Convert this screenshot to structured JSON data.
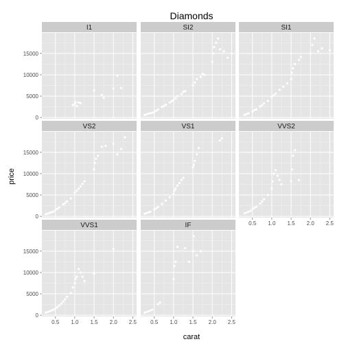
{
  "chart_data": {
    "type": "scatter",
    "title": "Diamonds",
    "xlabel": "carat",
    "ylabel": "price",
    "xlim": [
      0.15,
      2.6
    ],
    "ylim": [
      -300,
      19800
    ],
    "x_ticks": [
      0.5,
      1.0,
      1.5,
      2.0,
      2.5
    ],
    "x_tick_labels": [
      "0.5",
      "1.0",
      "1.5",
      "2.0",
      "2.5"
    ],
    "y_ticks": [
      0,
      5000,
      10000,
      15000
    ],
    "y_tick_labels": [
      "0",
      "5000",
      "10000",
      "15000"
    ],
    "grid": true,
    "point_color": "#ffffff",
    "panel_background": "#e5e5e5",
    "strip_background": "#cccccc",
    "facets": [
      {
        "label": "I1",
        "points": [
          [
            0.95,
            2900
          ],
          [
            1.0,
            3200
          ],
          [
            1.02,
            3600
          ],
          [
            1.05,
            2700
          ],
          [
            1.1,
            3500
          ],
          [
            1.15,
            3400
          ],
          [
            1.5,
            6400
          ],
          [
            1.7,
            5300
          ],
          [
            1.75,
            4600
          ],
          [
            2.0,
            6800
          ],
          [
            2.1,
            9800
          ],
          [
            2.2,
            6900
          ]
        ]
      },
      {
        "label": "SI2",
        "points": [
          [
            0.25,
            600
          ],
          [
            0.3,
            700
          ],
          [
            0.35,
            900
          ],
          [
            0.4,
            1000
          ],
          [
            0.45,
            1100
          ],
          [
            0.5,
            1300
          ],
          [
            0.55,
            1600
          ],
          [
            0.6,
            1900
          ],
          [
            0.7,
            2500
          ],
          [
            0.75,
            2700
          ],
          [
            0.8,
            3000
          ],
          [
            0.9,
            3500
          ],
          [
            0.95,
            3800
          ],
          [
            1.0,
            4100
          ],
          [
            1.05,
            4500
          ],
          [
            1.1,
            5000
          ],
          [
            1.2,
            5500
          ],
          [
            1.25,
            6000
          ],
          [
            1.3,
            6200
          ],
          [
            1.5,
            7500
          ],
          [
            1.55,
            8200
          ],
          [
            1.6,
            9000
          ],
          [
            1.7,
            9500
          ],
          [
            1.75,
            10200
          ],
          [
            1.8,
            10000
          ],
          [
            2.0,
            13000
          ],
          [
            2.02,
            15000
          ],
          [
            2.05,
            16500
          ],
          [
            2.1,
            17500
          ],
          [
            2.15,
            18500
          ],
          [
            2.2,
            16000
          ],
          [
            2.3,
            15500
          ],
          [
            2.4,
            14000
          ],
          [
            2.5,
            15000
          ]
        ]
      },
      {
        "label": "SI1",
        "points": [
          [
            0.3,
            600
          ],
          [
            0.35,
            800
          ],
          [
            0.4,
            1000
          ],
          [
            0.5,
            1400
          ],
          [
            0.55,
            1700
          ],
          [
            0.6,
            1900
          ],
          [
            0.7,
            2600
          ],
          [
            0.75,
            2900
          ],
          [
            0.8,
            3300
          ],
          [
            0.9,
            3900
          ],
          [
            1.0,
            4800
          ],
          [
            1.05,
            5200
          ],
          [
            1.1,
            5600
          ],
          [
            1.2,
            6500
          ],
          [
            1.3,
            7200
          ],
          [
            1.4,
            8000
          ],
          [
            1.5,
            9000
          ],
          [
            1.52,
            10500
          ],
          [
            1.55,
            11500
          ],
          [
            1.6,
            12500
          ],
          [
            1.7,
            13500
          ],
          [
            1.75,
            14200
          ],
          [
            2.0,
            15000
          ],
          [
            2.05,
            17000
          ],
          [
            2.1,
            18500
          ],
          [
            2.2,
            15500
          ],
          [
            2.3,
            16200
          ],
          [
            2.5,
            15800
          ]
        ]
      },
      {
        "label": "VS2",
        "points": [
          [
            0.25,
            500
          ],
          [
            0.3,
            650
          ],
          [
            0.35,
            800
          ],
          [
            0.4,
            950
          ],
          [
            0.45,
            1100
          ],
          [
            0.5,
            1500
          ],
          [
            0.55,
            1800
          ],
          [
            0.6,
            2100
          ],
          [
            0.7,
            2800
          ],
          [
            0.75,
            3100
          ],
          [
            0.8,
            3500
          ],
          [
            0.9,
            4200
          ],
          [
            1.0,
            5500
          ],
          [
            1.05,
            6000
          ],
          [
            1.1,
            6500
          ],
          [
            1.15,
            7000
          ],
          [
            1.2,
            7600
          ],
          [
            1.25,
            8200
          ],
          [
            1.5,
            11000
          ],
          [
            1.52,
            12500
          ],
          [
            1.55,
            13500
          ],
          [
            1.6,
            14200
          ],
          [
            1.7,
            16300
          ],
          [
            1.8,
            16500
          ],
          [
            2.0,
            17000
          ],
          [
            2.1,
            14500
          ],
          [
            2.2,
            15800
          ],
          [
            2.3,
            18500
          ]
        ]
      },
      {
        "label": "VS1",
        "points": [
          [
            0.25,
            600
          ],
          [
            0.3,
            750
          ],
          [
            0.35,
            900
          ],
          [
            0.4,
            1100
          ],
          [
            0.5,
            1600
          ],
          [
            0.55,
            1900
          ],
          [
            0.6,
            2200
          ],
          [
            0.7,
            2900
          ],
          [
            0.8,
            3700
          ],
          [
            0.9,
            4500
          ],
          [
            1.0,
            5300
          ],
          [
            1.02,
            6000
          ],
          [
            1.05,
            6500
          ],
          [
            1.1,
            7200
          ],
          [
            1.15,
            7800
          ],
          [
            1.2,
            8500
          ],
          [
            1.25,
            9000
          ],
          [
            1.5,
            11500
          ],
          [
            1.52,
            12000
          ],
          [
            1.55,
            13000
          ],
          [
            1.6,
            14500
          ],
          [
            1.65,
            16000
          ],
          [
            2.2,
            17800
          ],
          [
            2.25,
            18300
          ]
        ]
      },
      {
        "label": "VVS2",
        "points": [
          [
            0.3,
            700
          ],
          [
            0.35,
            900
          ],
          [
            0.4,
            1100
          ],
          [
            0.45,
            1300
          ],
          [
            0.5,
            1700
          ],
          [
            0.55,
            2000
          ],
          [
            0.6,
            2300
          ],
          [
            0.7,
            3000
          ],
          [
            0.75,
            3500
          ],
          [
            0.8,
            4000
          ],
          [
            0.9,
            5000
          ],
          [
            1.0,
            6500
          ],
          [
            1.02,
            8200
          ],
          [
            1.05,
            10000
          ],
          [
            1.1,
            10800
          ],
          [
            1.15,
            9500
          ],
          [
            1.2,
            8500
          ],
          [
            1.25,
            7500
          ],
          [
            1.5,
            8300
          ],
          [
            1.52,
            11000
          ],
          [
            1.55,
            14200
          ],
          [
            1.6,
            15500
          ],
          [
            1.7,
            8500
          ]
        ]
      },
      {
        "label": "VVS1",
        "points": [
          [
            0.25,
            600
          ],
          [
            0.3,
            750
          ],
          [
            0.35,
            900
          ],
          [
            0.4,
            1100
          ],
          [
            0.45,
            1300
          ],
          [
            0.5,
            1600
          ],
          [
            0.55,
            1900
          ],
          [
            0.6,
            2300
          ],
          [
            0.65,
            2700
          ],
          [
            0.7,
            3200
          ],
          [
            0.75,
            3700
          ],
          [
            0.8,
            4300
          ],
          [
            0.9,
            5200
          ],
          [
            0.95,
            6500
          ],
          [
            1.0,
            7500
          ],
          [
            1.02,
            8500
          ],
          [
            1.05,
            9000
          ],
          [
            1.1,
            10800
          ],
          [
            1.15,
            10000
          ],
          [
            1.2,
            9000
          ],
          [
            1.25,
            8000
          ],
          [
            1.5,
            9700
          ],
          [
            2.0,
            15500
          ]
        ]
      },
      {
        "label": "IF",
        "points": [
          [
            0.25,
            600
          ],
          [
            0.3,
            750
          ],
          [
            0.35,
            900
          ],
          [
            0.4,
            1100
          ],
          [
            0.45,
            1300
          ],
          [
            0.6,
            2600
          ],
          [
            0.65,
            3000
          ],
          [
            1.0,
            8500
          ],
          [
            1.02,
            11500
          ],
          [
            1.05,
            12500
          ],
          [
            1.1,
            16000
          ],
          [
            1.3,
            15700
          ],
          [
            1.4,
            12500
          ],
          [
            1.5,
            15000
          ],
          [
            1.52,
            18500
          ],
          [
            1.6,
            14000
          ],
          [
            1.7,
            15000
          ]
        ]
      }
    ]
  }
}
